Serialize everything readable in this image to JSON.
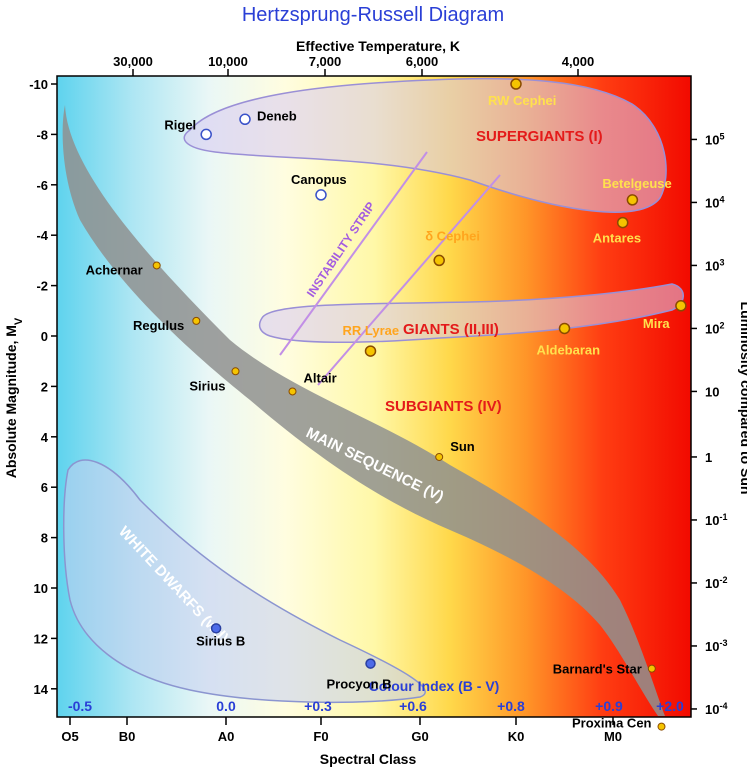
{
  "title": "Hertzsprung-Russell Diagram",
  "axes": {
    "top_label": "Effective Temperature, K",
    "bottom_label": "Spectral Class",
    "left_label": "Absolute Magnitude, M",
    "left_label_subscript": "V",
    "right_label": "Luminosity compared to Sun"
  },
  "regions": {
    "supergiants": "SUPERGIANTS (I)",
    "giants": "GIANTS (II,III)",
    "subgiants": "SUBGIANTS (IV)",
    "main_sequence": "MAIN SEQUENCE (V)",
    "white_dwarfs": "WHITE DWARFS (wd)",
    "instability_strip": "INSTABILITY STRIP"
  },
  "colour_index_label": "Colour Index (B - V)",
  "colors": {
    "title": "#2a3fd6",
    "region_label": "#e41a1a",
    "instability_strip": "#a45de0",
    "star_fill": "#f5c400",
    "star_outline": "#8a4b00",
    "hot_star_fill": "#4d6be8",
    "open_star_outline": "#3a52c9",
    "colour_index": "#2a3fd6"
  },
  "chart_data": {
    "type": "scatter",
    "title": "Hertzsprung-Russell Diagram",
    "xlabel": "Spectral Class",
    "ylabel": "Absolute Magnitude, Mv",
    "y2label": "Luminosity compared to Sun",
    "x2label": "Effective Temperature, K",
    "ylim": [
      -11,
      15.5
    ],
    "y_inverted": true,
    "grid": false,
    "spectral_classes": [
      "O5",
      "B0",
      "A0",
      "F0",
      "G0",
      "K0",
      "M0"
    ],
    "magnitude_ticks": [
      "-10",
      "-8",
      "-6",
      "-4",
      "-2",
      "0",
      "2",
      "4",
      "6",
      "8",
      "10",
      "12",
      "14"
    ],
    "magnitude_values": [
      -10,
      -8,
      -6,
      -4,
      -2,
      0,
      2,
      4,
      6,
      8,
      10,
      12,
      14
    ],
    "temperature_ticks": [
      "30,000",
      "10,000",
      "7,000",
      "6,000",
      "4,000"
    ],
    "luminosity_ticks": [
      {
        "base": "10",
        "exp": "5",
        "mag": -7.8
      },
      {
        "base": "10",
        "exp": "4",
        "mag": -5.3
      },
      {
        "base": "10",
        "exp": "3",
        "mag": -2.8
      },
      {
        "base": "10",
        "exp": "2",
        "mag": -0.3
      },
      {
        "base": "10",
        "exp": "",
        "mag": 2.2
      },
      {
        "base": "1",
        "exp": "",
        "mag": 4.8
      },
      {
        "base": "10",
        "exp": "-1",
        "mag": 7.3
      },
      {
        "base": "10",
        "exp": "-2",
        "mag": 9.8
      },
      {
        "base": "10",
        "exp": "-3",
        "mag": 12.3
      },
      {
        "base": "10",
        "exp": "-4",
        "mag": 14.8
      }
    ],
    "colour_index_ticks": [
      "-0.5",
      "0.0",
      "+0.3",
      "+0.6",
      "+0.8",
      "+0.9",
      "+2.0"
    ],
    "stars": [
      {
        "name": "RW Cephei",
        "class": "K0",
        "mag": -10.0,
        "style": "giant"
      },
      {
        "name": "Rigel",
        "class": "B8",
        "mag": -8.0,
        "style": "open"
      },
      {
        "name": "Deneb",
        "class": "A2",
        "mag": -8.6,
        "style": "open"
      },
      {
        "name": "Canopus",
        "class": "F0",
        "mag": -5.6,
        "style": "open"
      },
      {
        "name": "Betelgeuse",
        "class": "M2",
        "mag": -5.4,
        "style": "giant"
      },
      {
        "name": "Antares",
        "class": "M1",
        "mag": -4.5,
        "style": "giant"
      },
      {
        "name": "δ Cephei",
        "class": "G2",
        "mag": -3.0,
        "style": "giant"
      },
      {
        "name": "Achernar",
        "class": "B3",
        "mag": -2.8,
        "style": "small"
      },
      {
        "name": "Mira",
        "class": "M7",
        "mag": -1.2,
        "style": "giant"
      },
      {
        "name": "RR Lyrae",
        "class": "F5",
        "mag": 0.6,
        "style": "giant"
      },
      {
        "name": "Aldebaran",
        "class": "K5",
        "mag": -0.3,
        "style": "giant"
      },
      {
        "name": "Regulus",
        "class": "B7",
        "mag": -0.6,
        "style": "small"
      },
      {
        "name": "Sirius",
        "class": "A1",
        "mag": 1.4,
        "style": "small"
      },
      {
        "name": "Altair",
        "class": "A7",
        "mag": 2.2,
        "style": "small"
      },
      {
        "name": "Sun",
        "class": "G2",
        "mag": 4.8,
        "style": "small"
      },
      {
        "name": "Sirius B",
        "class": "B9",
        "mag": 11.6,
        "style": "dwarf"
      },
      {
        "name": "Procyon B",
        "class": "F5",
        "mag": 13.0,
        "style": "dwarf"
      },
      {
        "name": "Barnard's Star",
        "class": "M4",
        "mag": 13.2,
        "style": "small"
      },
      {
        "name": "Proxima Cen",
        "class": "M5",
        "mag": 15.5,
        "style": "small"
      }
    ]
  }
}
